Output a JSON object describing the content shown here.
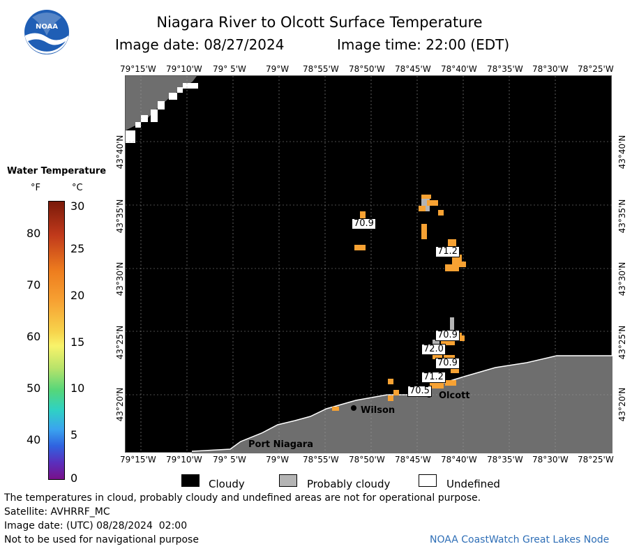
{
  "title": "Niagara River to Olcott Surface Temperature",
  "image_date_label": "Image date: 08/27/2024",
  "image_time_label": "Image time: 22:00 (EDT)",
  "logo": {
    "text": "NOAA"
  },
  "colorbar": {
    "title": "Water Temperature",
    "f_unit": "°F",
    "c_unit": "°C",
    "f_ticks": [
      "80",
      "70",
      "60",
      "50",
      "40"
    ],
    "c_ticks": [
      "30",
      "25",
      "20",
      "15",
      "10",
      "5",
      "0"
    ],
    "c_range": [
      0,
      30
    ]
  },
  "lon_labels": [
    "79°15'W",
    "79°10'W",
    "79° 5'W",
    "79°W",
    "78°55'W",
    "78°50'W",
    "78°45'W",
    "78°40'W",
    "78°35'W",
    "78°30'W",
    "78°25'W"
  ],
  "lat_labels": [
    "43°40'N",
    "43°35'N",
    "43°30'N",
    "43°25'N",
    "43°20'N"
  ],
  "temperature_labels": [
    "70.9",
    "71.2",
    "70.9",
    "72.0",
    "70.9",
    "71.2",
    "70.5"
  ],
  "places": {
    "wilson": "Wilson",
    "olcott": "Olcott",
    "port_niagara": "Port Niagara"
  },
  "legend": {
    "cloudy": "Cloudy",
    "probably_cloudy": "Probably cloudy",
    "undefined": "Undefined"
  },
  "legend_colors": {
    "cloudy": "#000000",
    "probably_cloudy": "#b4b4b4",
    "undefined": "#ffffff",
    "land": "#6e6e6e",
    "warm": "#f7a233"
  },
  "footer": {
    "disclaimer": "The temperatures in cloud, probably cloudy and undefined areas are not for operational purpose.",
    "satellite": "Satellite: AVHRRF_MC",
    "utc_date": "Image date: (UTC) 08/28/2024  02:00",
    "nav": "Not to be used for navigational purpose",
    "credit": "NOAA CoastWatch Great Lakes Node"
  }
}
